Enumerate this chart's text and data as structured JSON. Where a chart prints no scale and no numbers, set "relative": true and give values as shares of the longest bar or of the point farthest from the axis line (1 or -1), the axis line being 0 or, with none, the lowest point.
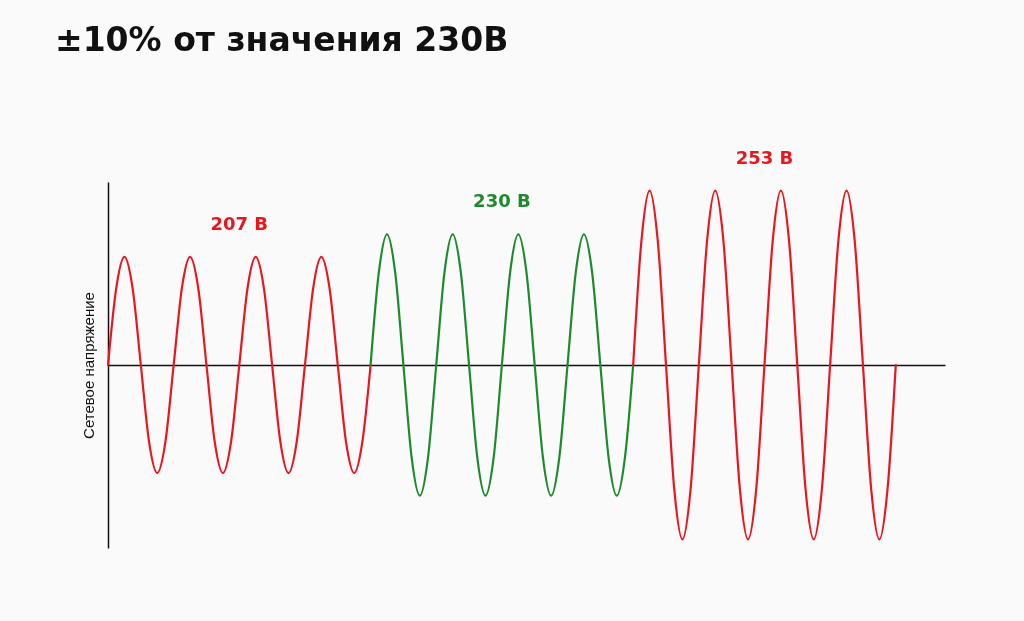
{
  "chart_data": {
    "type": "line",
    "title": "±10% от значения 230В",
    "ylabel": "Сетевое напряжение",
    "relative": true,
    "tick_labels": false,
    "legend": false,
    "categories": [
      null,
      null,
      null,
      null,
      null,
      null,
      null,
      null,
      null,
      null,
      null,
      null,
      null,
      null,
      null,
      null,
      null,
      null,
      null,
      null,
      null,
      null,
      null,
      null,
      null,
      null,
      null,
      null,
      null,
      null,
      null,
      null,
      null,
      null,
      null,
      null,
      null,
      null,
      null,
      null,
      null,
      null,
      null,
      null,
      null,
      null,
      null,
      null,
      null,
      null,
      null,
      null,
      null,
      null,
      null,
      null,
      null,
      null,
      null,
      null,
      null,
      null,
      null,
      null,
      null,
      null,
      null,
      null,
      null,
      null,
      null,
      null,
      null,
      null,
      null,
      null,
      null,
      null,
      null,
      null,
      null,
      null,
      null,
      null,
      null,
      null,
      null,
      null,
      null,
      null,
      null,
      null,
      null,
      null,
      null,
      null,
      null
    ],
    "series": [
      {
        "name": "207 В",
        "color": "#e8161e",
        "values": [
          0,
          0.44,
          0.62,
          0.44,
          0,
          -0.44,
          -0.62,
          -0.44,
          0,
          0.44,
          0.62,
          0.44,
          0,
          -0.44,
          -0.62,
          -0.44,
          0,
          0.44,
          0.62,
          0.44,
          0,
          -0.44,
          -0.62,
          -0.44,
          0,
          0.44,
          0.62,
          0.44,
          0,
          -0.44,
          -0.62,
          -0.44,
          0,
          null,
          null,
          null,
          null,
          null,
          null,
          null,
          null,
          null,
          null,
          null,
          null,
          null,
          null,
          null,
          null,
          null,
          null,
          null,
          null,
          null,
          null,
          null,
          null,
          null,
          null,
          null,
          null,
          null,
          null,
          null,
          null,
          null,
          null,
          null,
          null,
          null,
          null,
          null,
          null,
          null,
          null,
          null,
          null,
          null,
          null,
          null,
          null,
          null,
          null,
          null,
          null,
          null,
          null,
          null,
          null,
          null,
          null,
          null,
          null,
          null,
          null,
          null,
          null
        ]
      },
      {
        "name": "230 В",
        "color": "#1e8a2e",
        "values": [
          null,
          null,
          null,
          null,
          null,
          null,
          null,
          null,
          null,
          null,
          null,
          null,
          null,
          null,
          null,
          null,
          null,
          null,
          null,
          null,
          null,
          null,
          null,
          null,
          null,
          null,
          null,
          null,
          null,
          null,
          null,
          null,
          0,
          0.53,
          0.75,
          0.53,
          0,
          -0.53,
          -0.75,
          -0.53,
          0,
          0.53,
          0.75,
          0.53,
          0,
          -0.53,
          -0.75,
          -0.53,
          0,
          0.53,
          0.75,
          0.53,
          0,
          -0.53,
          -0.75,
          -0.53,
          0,
          0.53,
          0.75,
          0.53,
          0,
          -0.53,
          -0.75,
          -0.53,
          0,
          null,
          null,
          null,
          null,
          null,
          null,
          null,
          null,
          null,
          null,
          null,
          null,
          null,
          null,
          null,
          null,
          null,
          null,
          null,
          null,
          null,
          null,
          null,
          null,
          null,
          null,
          null,
          null,
          null,
          null,
          null,
          null
        ]
      },
      {
        "name": "253 В",
        "color": "#e8161e",
        "values": [
          null,
          null,
          null,
          null,
          null,
          null,
          null,
          null,
          null,
          null,
          null,
          null,
          null,
          null,
          null,
          null,
          null,
          null,
          null,
          null,
          null,
          null,
          null,
          null,
          null,
          null,
          null,
          null,
          null,
          null,
          null,
          null,
          null,
          null,
          null,
          null,
          null,
          null,
          null,
          null,
          null,
          null,
          null,
          null,
          null,
          null,
          null,
          null,
          null,
          null,
          null,
          null,
          null,
          null,
          null,
          null,
          null,
          null,
          null,
          null,
          null,
          null,
          null,
          null,
          0,
          0.71,
          1,
          0.71,
          0,
          -0.71,
          -1,
          -0.71,
          0,
          0.71,
          1,
          0.71,
          0,
          -0.71,
          -1,
          -0.71,
          0,
          0.71,
          1,
          0.71,
          0,
          -0.71,
          -1,
          -0.71,
          0,
          0.71,
          1,
          0.71,
          0,
          -0.71,
          -1,
          -0.71,
          0
        ]
      }
    ]
  }
}
